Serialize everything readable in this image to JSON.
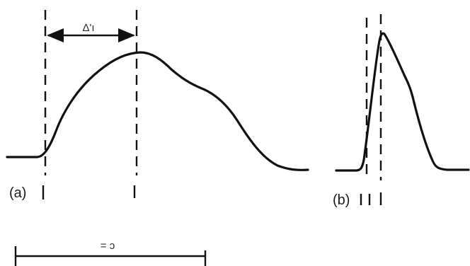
{
  "panels": {
    "a": {
      "label": "(a)"
    },
    "b": {
      "label": "(b)"
    }
  },
  "annotations": {
    "top_interval_label": "Δ'ı",
    "bottom_scale_label": "= ɔ"
  },
  "colors": {
    "ink": "#111111",
    "background": "#ffffff"
  }
}
